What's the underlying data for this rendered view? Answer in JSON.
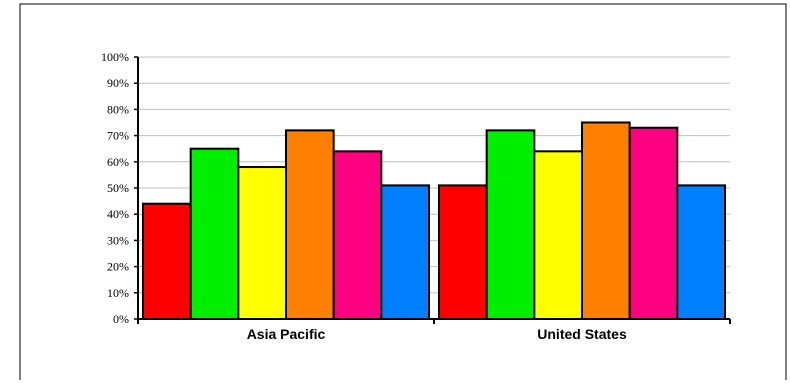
{
  "chart_data": {
    "type": "bar",
    "categories": [
      "Asia Pacific",
      "United States"
    ],
    "series": [
      {
        "color": "#ff0000",
        "values": [
          44,
          51
        ]
      },
      {
        "color": "#00ee00",
        "values": [
          65,
          72
        ]
      },
      {
        "color": "#ffff00",
        "values": [
          58,
          64
        ]
      },
      {
        "color": "#ff8000",
        "values": [
          72,
          75
        ]
      },
      {
        "color": "#ff0080",
        "values": [
          64,
          73
        ]
      },
      {
        "color": "#0080ff",
        "values": [
          51,
          51
        ]
      }
    ],
    "ylim": [
      0,
      100
    ],
    "y_ticks": [
      "0%",
      "10%",
      "20%",
      "30%",
      "40%",
      "50%",
      "60%",
      "70%",
      "80%",
      "90%",
      "100%"
    ],
    "grid": true,
    "legend": "none"
  }
}
